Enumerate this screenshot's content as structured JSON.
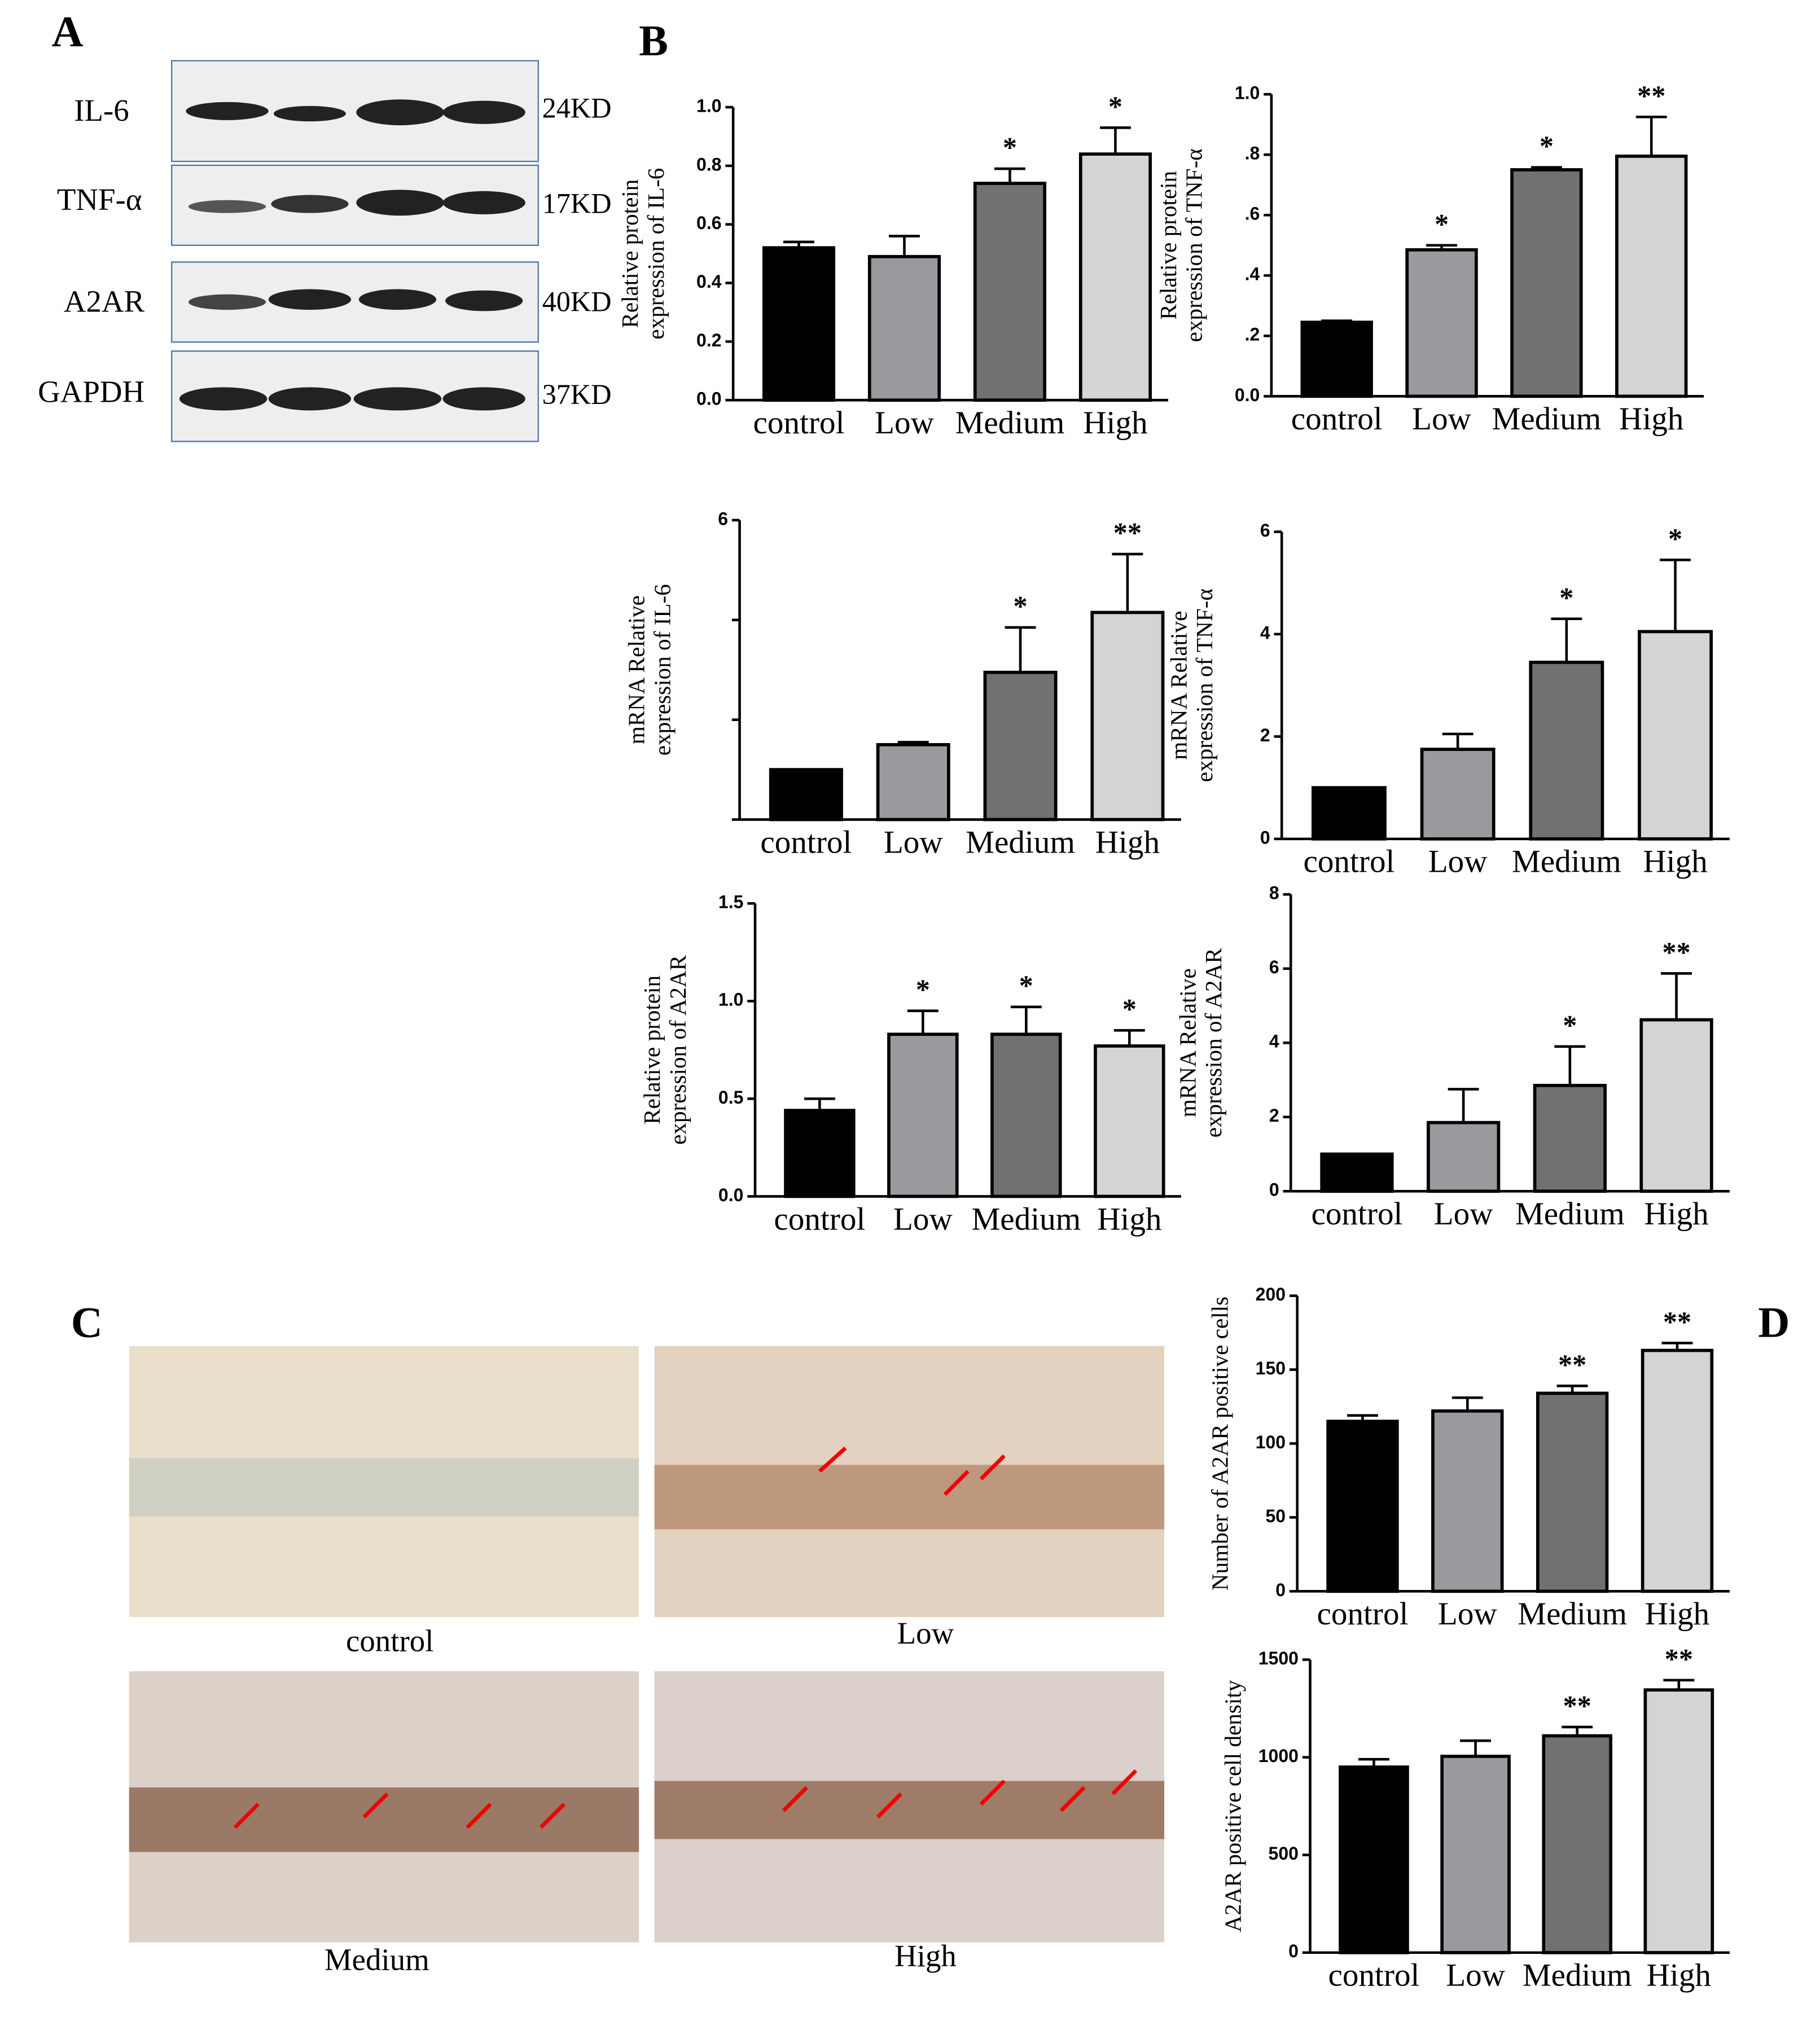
{
  "panel_labels": [
    "A",
    "B",
    "C",
    "D"
  ],
  "western_blot": {
    "proteins": [
      "IL-6",
      "TNF-α",
      "A2AR",
      "GAPDH"
    ],
    "weights": [
      "24KD",
      "17KD",
      "40KD",
      "37KD"
    ]
  },
  "micrographs": {
    "captions": [
      "control",
      "Low",
      "Medium",
      "High"
    ]
  },
  "chart_data": [
    {
      "type": "bar",
      "ylabel": [
        "Relative protein",
        "expression of IL-6"
      ],
      "categories": [
        "control",
        "Low",
        "Medium",
        "High"
      ],
      "colors": [
        "#000000",
        "#9a9a9e",
        "#717171",
        "#d4d4d4"
      ],
      "values": [
        0.52,
        0.49,
        0.74,
        0.84
      ],
      "errors": [
        0.02,
        0.07,
        0.05,
        0.09
      ],
      "annotations": [
        null,
        null,
        "*",
        "*"
      ],
      "ylim": [
        0,
        1
      ],
      "yticks": [
        {
          "value": 0,
          "label": "0.0"
        },
        {
          "value": 0.2,
          "label": "0.2"
        },
        {
          "value": 0.4,
          "label": "0.4"
        },
        {
          "value": 0.6,
          "label": "0.6"
        },
        {
          "value": 0.8,
          "label": "0.8"
        },
        {
          "value": 1,
          "label": "1.0"
        }
      ]
    },
    {
      "type": "bar",
      "ylabel": [
        "Relative protein",
        "expression of TNF-α"
      ],
      "categories": [
        "control",
        "Low",
        "Medium",
        "High"
      ],
      "colors": [
        "#000000",
        "#9a9a9e",
        "#717171",
        "#d4d4d4"
      ],
      "values": [
        0.245,
        0.485,
        0.75,
        0.795
      ],
      "errors": [
        0.005,
        0.015,
        0.008,
        0.13
      ],
      "annotations": [
        null,
        "*",
        "*",
        "**"
      ],
      "ylim": [
        0,
        1
      ],
      "yticks": [
        {
          "value": 0,
          "label": "0.0"
        },
        {
          "value": 0.2,
          "label": ".2"
        },
        {
          "value": 0.4,
          "label": ".4"
        },
        {
          "value": 0.6,
          "label": ".6"
        },
        {
          "value": 0.8,
          "label": ".8"
        },
        {
          "value": 1,
          "label": "1.0"
        }
      ]
    },
    {
      "type": "bar",
      "ylabel": [
        "mRNA Relative",
        "expression  of IL-6"
      ],
      "categories": [
        "control",
        "Low",
        "Medium",
        "High"
      ],
      "colors": [
        "#000000",
        "#9a9a9e",
        "#717171",
        "#d4d4d4"
      ],
      "values": [
        1.0,
        1.5,
        2.95,
        4.15
      ],
      "errors": [
        0,
        0.05,
        0.9,
        1.17
      ],
      "annotations": [
        null,
        null,
        "*",
        "**"
      ],
      "ylim": [
        0,
        6
      ],
      "yticks": [
        6
      ],
      "unlabeled_yticks": [
        0,
        2,
        4
      ]
    },
    {
      "type": "bar",
      "ylabel": [
        "mRNA Relative",
        "expression  of  TNF-α"
      ],
      "categories": [
        "control",
        "Low",
        "Medium",
        "High"
      ],
      "colors": [
        "#000000",
        "#9a9a9e",
        "#717171",
        "#d4d4d4"
      ],
      "values": [
        1.0,
        1.75,
        3.45,
        4.05
      ],
      "errors": [
        0,
        0.3,
        0.85,
        1.4
      ],
      "annotations": [
        null,
        null,
        "*",
        "*"
      ],
      "ylim": [
        0,
        6
      ],
      "yticks": [
        0,
        2,
        4,
        6
      ]
    },
    {
      "type": "bar",
      "ylabel": [
        "Relative protein",
        "expression of A2AR"
      ],
      "categories": [
        "control",
        "Low",
        "Medium",
        "High"
      ],
      "colors": [
        "#000000",
        "#9a9a9e",
        "#717171",
        "#d4d4d4"
      ],
      "values": [
        0.44,
        0.83,
        0.83,
        0.77
      ],
      "errors": [
        0.06,
        0.12,
        0.14,
        0.08
      ],
      "annotations": [
        null,
        "*",
        "*",
        "*"
      ],
      "ylim": [
        0,
        1.5
      ],
      "yticks": [
        {
          "value": 0,
          "label": "0.0"
        },
        {
          "value": 0.5,
          "label": "0.5"
        },
        {
          "value": 1,
          "label": "1.0"
        },
        1.5
      ]
    },
    {
      "type": "bar",
      "ylabel": [
        "mRNA Relative",
        "expression  of  A2AR"
      ],
      "categories": [
        "control",
        "Low",
        "Medium",
        "High"
      ],
      "colors": [
        "#000000",
        "#9a9a9e",
        "#717171",
        "#d4d4d4"
      ],
      "values": [
        1.0,
        1.85,
        2.85,
        4.62
      ],
      "errors": [
        0,
        0.9,
        1.05,
        1.25
      ],
      "annotations": [
        null,
        null,
        "*",
        "**"
      ],
      "ylim": [
        0,
        8
      ],
      "yticks": [
        0,
        2,
        4,
        6,
        8
      ]
    },
    {
      "type": "bar",
      "ylabel": [
        "Number of A2AR positive cells"
      ],
      "categories": [
        "control",
        "Low",
        "Medium",
        "High"
      ],
      "colors": [
        "#000000",
        "#9a9a9e",
        "#717171",
        "#d4d4d4"
      ],
      "values": [
        115,
        122,
        134,
        163
      ],
      "errors": [
        4,
        9,
        5,
        5
      ],
      "annotations": [
        null,
        null,
        "**",
        "**"
      ],
      "ylim": [
        0,
        200
      ],
      "yticks": [
        0,
        50,
        100,
        150,
        200
      ]
    },
    {
      "type": "bar",
      "ylabel": [
        "A2AR positive cell density"
      ],
      "categories": [
        "control",
        "Low",
        "Medium",
        "High"
      ],
      "colors": [
        "#000000",
        "#9a9a9e",
        "#717171",
        "#d4d4d4"
      ],
      "values": [
        950,
        1005,
        1110,
        1345
      ],
      "errors": [
        40,
        80,
        45,
        50
      ],
      "annotations": [
        null,
        null,
        "**",
        "**"
      ],
      "ylim": [
        0,
        1500
      ],
      "yticks": [
        0,
        500,
        1000,
        1500
      ]
    }
  ]
}
